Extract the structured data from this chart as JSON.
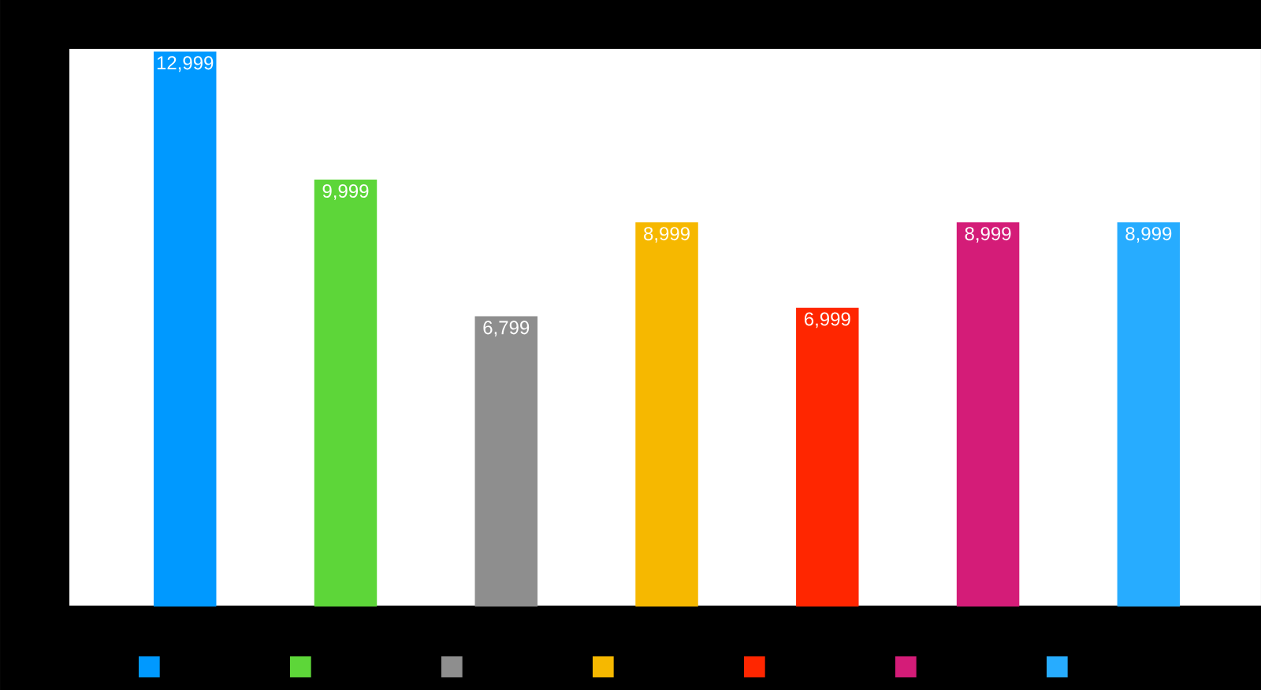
{
  "chart_data": {
    "type": "bar",
    "categories": [
      null,
      null,
      null,
      null,
      null,
      null,
      null
    ],
    "values": [
      12999,
      9999,
      6799,
      8999,
      6999,
      8999,
      8999
    ],
    "colors": [
      "#0099ff",
      "#5dd639",
      "#8e8e8e",
      "#f6b800",
      "#ff2600",
      "#d41c78",
      "#27acff"
    ],
    "value_labels": [
      "12,999",
      "9,999",
      "6,799",
      "8,999",
      "6,999",
      "8,999",
      "8,999"
    ]
  }
}
